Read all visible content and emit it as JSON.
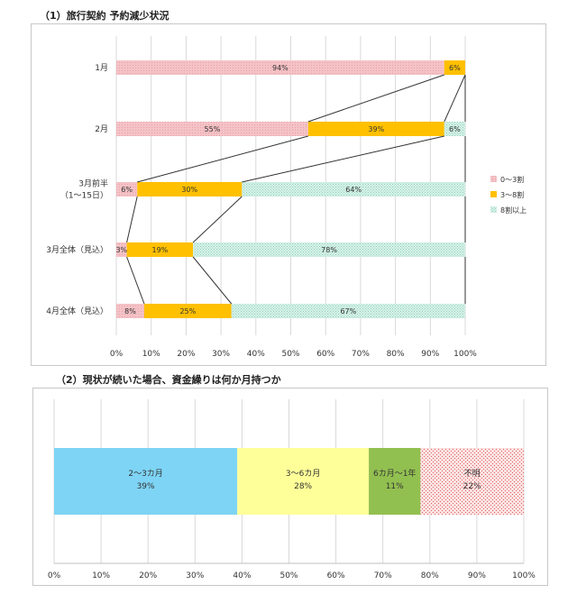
{
  "chart1_title": "（1）旅行契約 予約減少状況",
  "chart2_title": "（2）現状が続いた場合、資金繰りは何か月持つか",
  "colors": {
    "seg1_fill": "#f4c2c6",
    "seg1_pattern": "#e9a3aa",
    "seg2_fill": "#ffc000",
    "seg3_fill": "#d9f2ea",
    "seg3_pattern": "#8fd3bb",
    "c2_seg1": "#7ed4f5",
    "c2_seg2": "#ffff99",
    "c2_seg3": "#92c050",
    "c2_seg4_fill": "#fbe1e1",
    "c2_seg4_pattern": "#e06060",
    "grid": "#d9d9d9",
    "connector": "#333333"
  },
  "chart_data": [
    {
      "type": "bar",
      "orientation": "horizontal",
      "stacked": true,
      "title": "（1）旅行契約 予約減少状況",
      "categories": [
        "1月",
        "2月",
        "3月前半\n（1～15日）",
        "3月全体（見込）",
        "4月全体（見込）"
      ],
      "series": [
        {
          "name": "0～3割",
          "values": [
            94,
            55,
            6,
            3,
            8
          ],
          "labels": [
            "94%",
            "55%",
            "6%",
            "3%",
            "8%"
          ]
        },
        {
          "name": "3～8割",
          "values": [
            6,
            39,
            30,
            19,
            25
          ],
          "labels": [
            "6%",
            "39%",
            "30%",
            "19%",
            "25%"
          ]
        },
        {
          "name": "8割以上",
          "values": [
            0,
            6,
            64,
            78,
            67
          ],
          "labels": [
            "",
            "6%",
            "64%",
            "78%",
            "67%"
          ]
        }
      ],
      "xlim": [
        0,
        100
      ],
      "xticks": [
        "0%",
        "10%",
        "20%",
        "30%",
        "40%",
        "50%",
        "60%",
        "70%",
        "80%",
        "90%",
        "100%"
      ],
      "legend": "right",
      "grid": true,
      "series_lines": true
    },
    {
      "type": "bar",
      "orientation": "horizontal",
      "stacked": true,
      "title": "（2）現状が続いた場合、資金繰りは何か月持つか",
      "segments": [
        {
          "name": "2～3カ月",
          "value": 39,
          "label": "39%"
        },
        {
          "name": "3～6カ月",
          "value": 28,
          "label": "28%"
        },
        {
          "name": "6カ月～1年",
          "value": 11,
          "label": "11%"
        },
        {
          "name": "不明",
          "value": 22,
          "label": "22%"
        }
      ],
      "xlim": [
        0,
        100
      ],
      "xticks": [
        "0%",
        "10%",
        "20%",
        "30%",
        "40%",
        "50%",
        "60%",
        "70%",
        "80%",
        "90%",
        "100%"
      ],
      "grid": true
    }
  ]
}
